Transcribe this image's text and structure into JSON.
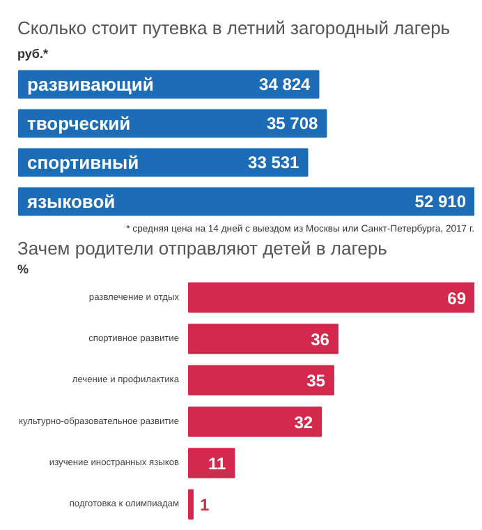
{
  "chart_data": [
    {
      "type": "bar",
      "orientation": "horizontal",
      "title": "Сколько стоит путевка в летний загородный лагерь",
      "subtitle": "руб.*",
      "categories": [
        "развивающий",
        "творческий",
        "спортивный",
        "языковой"
      ],
      "values": [
        34824,
        35708,
        33531,
        52910
      ],
      "value_labels": [
        "34 824",
        "35 708",
        "33 531",
        "52 910"
      ],
      "color": "#1c6cb6",
      "tick_labels": false,
      "annotations": [
        "* средняя цена на 14 дней с выездом из Москвы или Санкт-Петербурга, 2017 г."
      ]
    },
    {
      "type": "bar",
      "orientation": "horizontal",
      "title": "Зачем родители отправляют детей в лагерь",
      "subtitle": "%",
      "categories": [
        "развлечение и отдых",
        "спортивное развитие",
        "лечение и профилактика",
        "культурно-образовательное развитие",
        "изучение иностранных языков",
        "подготовка к олимпиадам"
      ],
      "values": [
        69,
        36,
        35,
        32,
        11,
        1
      ],
      "color": "#d3294c",
      "data_labels": true,
      "tick_labels": "y"
    }
  ]
}
